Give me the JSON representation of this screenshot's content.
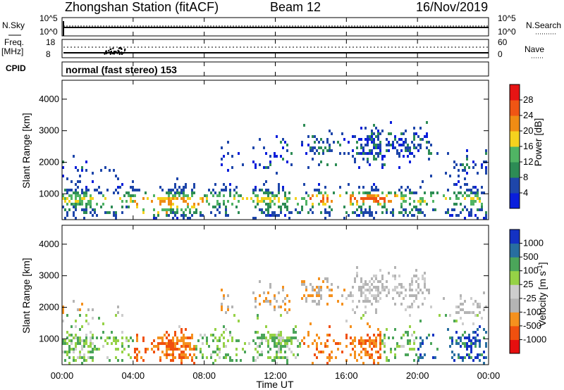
{
  "header": {
    "station": "Zhongshan Station (fitACF)",
    "beam": "Beam 12",
    "date": "16/Nov/2019"
  },
  "side_labels": {
    "nsky": "N.Sky",
    "nsearch": "N.Search",
    "freq": "Freq.",
    "mhz": "[MHz]",
    "nave": "Nave",
    "cpid": "CPID"
  },
  "panels": {
    "noise": {
      "left_ticks": [
        "10^5",
        "10^0"
      ],
      "right_ticks": [
        "10^5",
        "10^0"
      ]
    },
    "freq": {
      "left_ticks": [
        "18",
        "8"
      ],
      "right_ticks": [
        "60",
        "0"
      ]
    },
    "cpid_text": "normal (fast stereo) 153"
  },
  "colors": {
    "power": [
      "#0a1edc",
      "#1e46aa",
      "#2d8c55",
      "#50b464",
      "#f5d21e",
      "#f08c14",
      "#f05514",
      "#e61414"
    ],
    "velocity": [
      "#e60f0f",
      "#f0500f",
      "#f5911e",
      "#b4b4b4",
      "#cdcdcd",
      "#96d246",
      "#4ba55a",
      "#286ea0",
      "#1432c3"
    ]
  },
  "chart_data": [
    {
      "type": "heatmap",
      "name": "power",
      "ylabel": "Slant Range [km]",
      "ylim": [
        180,
        4600
      ],
      "yticks": [
        "1000",
        "2000",
        "3000",
        "4000"
      ],
      "colorbar_label": "Power [dB]",
      "colorbar_ticks": [
        "4",
        "8",
        "12",
        "16",
        "20",
        "24",
        "28"
      ],
      "colorbar_range": [
        0,
        32
      ]
    },
    {
      "type": "heatmap",
      "name": "velocity",
      "ylabel": "Slant Range [km]",
      "ylim": [
        180,
        4600
      ],
      "yticks": [
        "1000",
        "2000",
        "3000",
        "4000"
      ],
      "colorbar_label": "Velocity [m s",
      "colorbar_label_sup": "-1",
      "colorbar_label_end": "]",
      "colorbar_ticks": [
        "1000",
        "500",
        "100",
        "25",
        "-25",
        "-100",
        "-500",
        "-1000"
      ]
    }
  ],
  "xaxis": {
    "label": "Time UT",
    "ticks": [
      "00:00",
      "04:00",
      "08:00",
      "12:00",
      "16:00",
      "20:00",
      "00:00"
    ],
    "range_hours": [
      0,
      24
    ]
  }
}
